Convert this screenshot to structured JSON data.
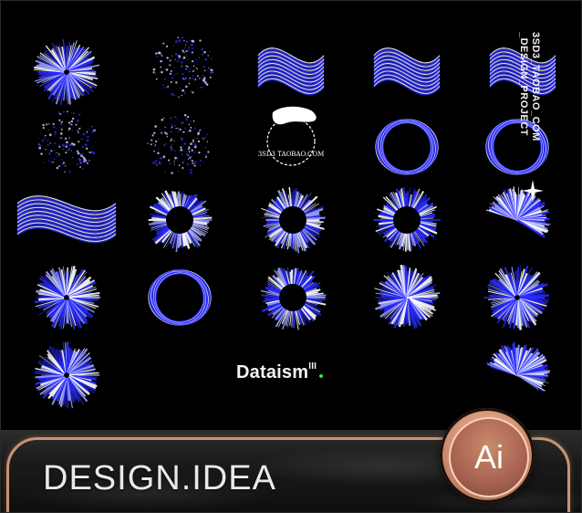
{
  "vertical_caption": "3SD3_TAOBAO_COM\n_DESIGN_PROJECT",
  "logo_text": "3SD3 TAOBAO.COM",
  "dataism": {
    "word": "Dataism",
    "mark": "III"
  },
  "banner_title": "DESIGN.IDEA",
  "badge_label": "Ai",
  "colors": {
    "background": "#000000",
    "accent_blue": "#2a2cff",
    "badge_copper": "#c98a6c",
    "dot_green": "#3ddc5a"
  },
  "graphics": [
    "radial-burst-1",
    "dot-sphere-1",
    "wave-ribbon-1",
    "wave-ribbon-2",
    "wave-ribbon-3",
    "dot-sphere-2",
    "dot-sphere-3",
    "hand-logo",
    "ring-loop-1",
    "ring-loop-2",
    "ribbon-twist-1",
    "ring-burst-1",
    "ring-burst-2",
    "ring-burst-3",
    "fan-burst-1",
    "radial-burst-2",
    "ring-loop-3",
    "ring-burst-4",
    "dome-burst-1",
    "radial-burst-3",
    "radial-burst-4",
    "fan-burst-2"
  ]
}
